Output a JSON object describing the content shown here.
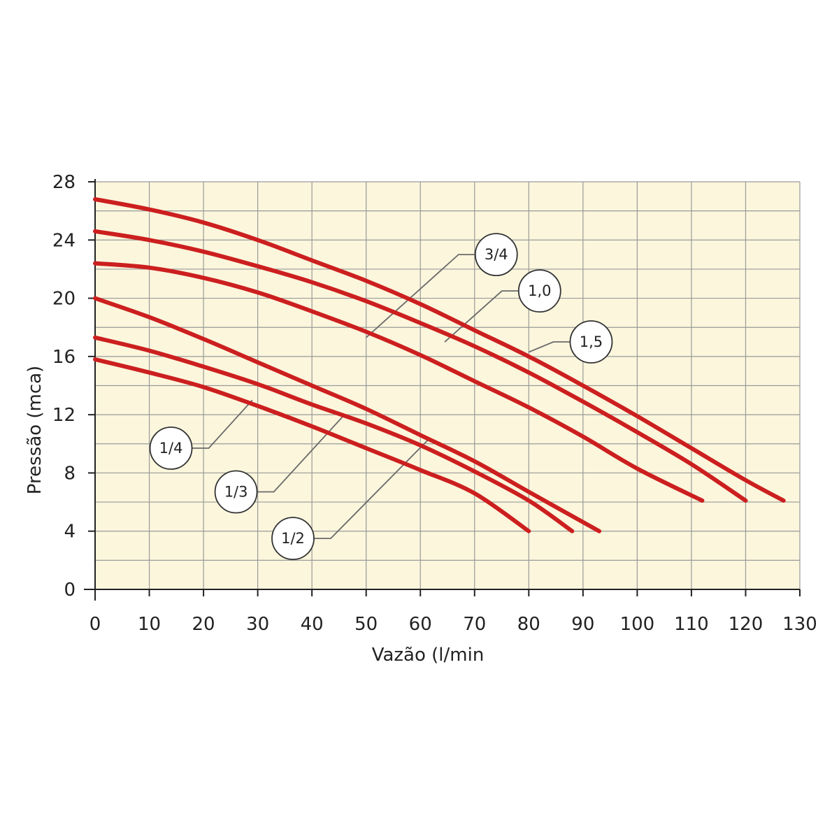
{
  "chart_data": {
    "type": "line",
    "title": "",
    "xlabel": "Vazão (l/min",
    "ylabel": "Pressão (mca)",
    "xlim": [
      0,
      130
    ],
    "ylim": [
      0,
      28
    ],
    "x_ticks": [
      0,
      10,
      20,
      30,
      40,
      50,
      60,
      70,
      80,
      90,
      100,
      110,
      120,
      130
    ],
    "y_ticks": [
      0,
      4,
      8,
      12,
      16,
      20,
      24,
      28
    ],
    "grid": true,
    "background_color": "#fbf6dc",
    "line_color": "#cc1f1f",
    "series": [
      {
        "name": "1/4",
        "points": [
          [
            0,
            15.8
          ],
          [
            10,
            14.9
          ],
          [
            20,
            13.9
          ],
          [
            30,
            12.6
          ],
          [
            40,
            11.2
          ],
          [
            50,
            9.7
          ],
          [
            60,
            8.2
          ],
          [
            70,
            6.6
          ],
          [
            80,
            4.0
          ]
        ]
      },
      {
        "name": "1/3",
        "points": [
          [
            0,
            17.3
          ],
          [
            10,
            16.4
          ],
          [
            20,
            15.3
          ],
          [
            30,
            14.1
          ],
          [
            40,
            12.7
          ],
          [
            50,
            11.4
          ],
          [
            60,
            9.9
          ],
          [
            70,
            8.1
          ],
          [
            80,
            6.1
          ],
          [
            88,
            4.0
          ]
        ]
      },
      {
        "name": "1/2",
        "points": [
          [
            0,
            20.0
          ],
          [
            10,
            18.7
          ],
          [
            20,
            17.2
          ],
          [
            30,
            15.6
          ],
          [
            40,
            14.0
          ],
          [
            50,
            12.4
          ],
          [
            60,
            10.6
          ],
          [
            70,
            8.8
          ],
          [
            80,
            6.7
          ],
          [
            93,
            4.0
          ]
        ]
      },
      {
        "name": "3/4",
        "points": [
          [
            0,
            22.4
          ],
          [
            10,
            22.1
          ],
          [
            20,
            21.4
          ],
          [
            30,
            20.4
          ],
          [
            40,
            19.1
          ],
          [
            50,
            17.7
          ],
          [
            60,
            16.1
          ],
          [
            70,
            14.3
          ],
          [
            80,
            12.5
          ],
          [
            90,
            10.5
          ],
          [
            100,
            8.3
          ],
          [
            112,
            6.1
          ]
        ]
      },
      {
        "name": "1,0",
        "points": [
          [
            0,
            24.6
          ],
          [
            10,
            24.0
          ],
          [
            20,
            23.2
          ],
          [
            30,
            22.2
          ],
          [
            40,
            21.1
          ],
          [
            50,
            19.8
          ],
          [
            60,
            18.3
          ],
          [
            70,
            16.7
          ],
          [
            80,
            14.9
          ],
          [
            90,
            12.9
          ],
          [
            100,
            10.8
          ],
          [
            110,
            8.6
          ],
          [
            120,
            6.1
          ]
        ]
      },
      {
        "name": "1,5",
        "points": [
          [
            0,
            26.8
          ],
          [
            10,
            26.1
          ],
          [
            20,
            25.2
          ],
          [
            30,
            24.0
          ],
          [
            40,
            22.6
          ],
          [
            50,
            21.2
          ],
          [
            60,
            19.6
          ],
          [
            70,
            17.8
          ],
          [
            80,
            16.0
          ],
          [
            90,
            14.0
          ],
          [
            100,
            11.9
          ],
          [
            110,
            9.7
          ],
          [
            120,
            7.5
          ],
          [
            127,
            6.1
          ]
        ]
      }
    ],
    "annotations": [
      {
        "label": "1/4",
        "series": "1/4",
        "anchor": [
          29,
          13.0
        ],
        "circle": [
          14,
          9.7
        ]
      },
      {
        "label": "1/3",
        "series": "1/3",
        "anchor": [
          46,
          12.0
        ],
        "circle": [
          26,
          6.7
        ]
      },
      {
        "label": "1/2",
        "series": "1/2",
        "anchor": [
          61.5,
          10.3
        ],
        "circle": [
          36.5,
          3.5
        ]
      },
      {
        "label": "3/4",
        "series": "3/4",
        "anchor": [
          50,
          17.3
        ],
        "circle": [
          74,
          23.0
        ]
      },
      {
        "label": "1,0",
        "series": "1,0",
        "anchor": [
          64.5,
          17.0
        ],
        "circle": [
          82,
          20.5
        ]
      },
      {
        "label": "1,5",
        "series": "1,5",
        "anchor": [
          80,
          16.3
        ],
        "circle": [
          91.5,
          17.0
        ]
      }
    ]
  }
}
